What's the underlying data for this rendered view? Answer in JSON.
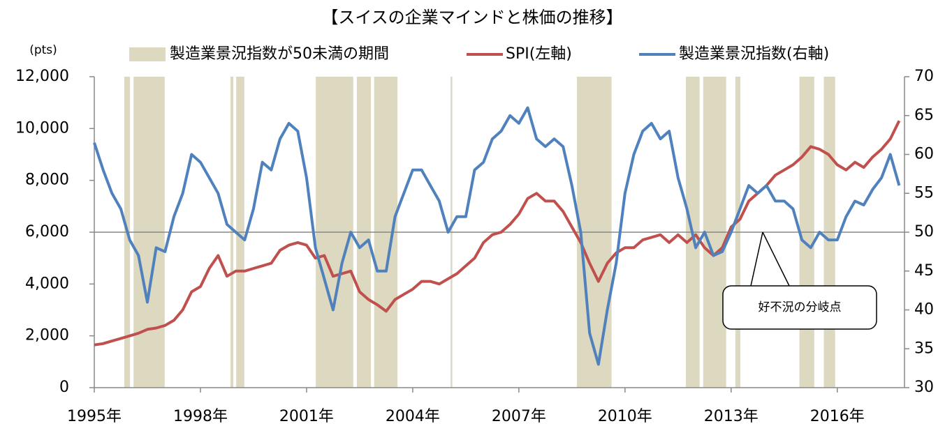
{
  "chart_data": {
    "type": "line",
    "title": "【スイスの企業マインドと株価の推移】",
    "y_unit": "(pts)",
    "annotation": "好不況の分岐点",
    "legend": "top",
    "xlim": [
      1995,
      2017.9
    ],
    "xticks": [
      {
        "value": 1995,
        "label": "1995年"
      },
      {
        "value": 1998,
        "label": "1998年"
      },
      {
        "value": 2001,
        "label": "2001年"
      },
      {
        "value": 2004,
        "label": "2004年"
      },
      {
        "value": 2007,
        "label": "2007年"
      },
      {
        "value": 2010,
        "label": "2010年"
      },
      {
        "value": 2013,
        "label": "2013年"
      },
      {
        "value": 2016,
        "label": "2016年"
      }
    ],
    "ylim": [
      0,
      12000
    ],
    "yticks": [
      0,
      {
        "value": 2000,
        "label": "2,000"
      },
      {
        "value": 4000,
        "label": "4,000"
      },
      {
        "value": 6000,
        "label": "6,000"
      },
      {
        "value": 8000,
        "label": "8,000"
      },
      {
        "value": 10000,
        "label": "10,000"
      },
      {
        "value": 12000,
        "label": "12,000"
      }
    ],
    "y2lim": [
      30,
      70
    ],
    "y2ticks": [
      30,
      35,
      40,
      45,
      50,
      55,
      60,
      65,
      70
    ],
    "reference_line": {
      "axis": "y2",
      "value": 50
    },
    "bands": {
      "name": "製造業景況指数が50未満の期間",
      "color": "#ddd8c0",
      "periods": [
        [
          1995.85,
          1996.01
        ],
        [
          1996.11,
          1996.99
        ],
        [
          1998.85,
          1998.93
        ],
        [
          1999.01,
          1999.24
        ],
        [
          2001.26,
          2002.32
        ],
        [
          2002.42,
          2002.82
        ],
        [
          2002.91,
          2003.57
        ],
        [
          2005.07,
          2005.12
        ],
        [
          2008.64,
          2009.62
        ],
        [
          2011.72,
          2012.11
        ],
        [
          2012.21,
          2012.86
        ],
        [
          2013.12,
          2013.26
        ],
        [
          2014.93,
          2015.35
        ],
        [
          2015.62,
          2015.94
        ]
      ]
    },
    "x": [
      1995,
      1995.25,
      1995.5,
      1995.75,
      1996,
      1996.25,
      1996.5,
      1996.75,
      1997,
      1997.25,
      1997.5,
      1997.75,
      1998,
      1998.25,
      1998.5,
      1998.75,
      1999,
      1999.25,
      1999.5,
      1999.75,
      2000,
      2000.25,
      2000.5,
      2000.75,
      2001,
      2001.25,
      2001.5,
      2001.75,
      2002,
      2002.25,
      2002.5,
      2002.75,
      2003,
      2003.25,
      2003.5,
      2003.75,
      2004,
      2004.25,
      2004.5,
      2004.75,
      2005,
      2005.25,
      2005.5,
      2005.75,
      2006,
      2006.25,
      2006.5,
      2006.75,
      2007,
      2007.25,
      2007.5,
      2007.75,
      2008,
      2008.25,
      2008.5,
      2008.75,
      2009,
      2009.25,
      2009.5,
      2009.75,
      2010,
      2010.25,
      2010.5,
      2010.75,
      2011,
      2011.25,
      2011.5,
      2011.75,
      2012,
      2012.25,
      2012.5,
      2012.75,
      2013,
      2013.25,
      2013.5,
      2013.75,
      2014,
      2014.25,
      2014.5,
      2014.75,
      2015,
      2015.25,
      2015.5,
      2015.75,
      2016,
      2016.25,
      2016.5,
      2016.75,
      2017,
      2017.25,
      2017.5,
      2017.75
    ],
    "series": [
      {
        "name": "SPI(左軸)",
        "color": "#c0504d",
        "axis": "y",
        "values": [
          1650,
          1700,
          1800,
          1900,
          2000,
          2100,
          2250,
          2300,
          2400,
          2600,
          3000,
          3700,
          3900,
          4600,
          5100,
          4300,
          4500,
          4500,
          4600,
          4700,
          4800,
          5300,
          5500,
          5600,
          5500,
          5000,
          5100,
          4300,
          4400,
          4500,
          3700,
          3400,
          3200,
          2950,
          3400,
          3600,
          3800,
          4100,
          4100,
          4000,
          4200,
          4400,
          4700,
          5000,
          5600,
          5900,
          6000,
          6300,
          6700,
          7300,
          7500,
          7200,
          7200,
          6800,
          6200,
          5600,
          4800,
          4100,
          4800,
          5200,
          5400,
          5400,
          5700,
          5800,
          5900,
          5600,
          5900,
          5600,
          5900,
          5400,
          5100,
          5400,
          6200,
          6500,
          7200,
          7500,
          7800,
          8200,
          8400,
          8600,
          8900,
          9300,
          9200,
          9000,
          8600,
          8400,
          8700,
          8500,
          8900,
          9200,
          9600,
          10300
        ]
      },
      {
        "name": "製造業景況指数(右軸)",
        "color": "#4f81bd",
        "axis": "y2",
        "values": [
          61.5,
          58,
          55,
          53,
          49,
          47,
          41,
          48,
          47.5,
          52,
          55,
          60,
          59,
          57,
          55,
          51,
          50,
          49,
          53,
          59,
          58,
          62,
          64,
          63,
          57,
          48,
          44,
          40,
          46,
          50,
          48,
          49,
          45,
          45,
          52,
          55,
          58,
          58,
          56,
          54,
          50,
          52,
          52,
          58,
          59,
          62,
          63,
          65,
          64,
          66,
          62,
          61,
          62,
          61,
          56,
          50,
          37,
          33,
          40,
          46,
          55,
          60,
          63,
          64,
          62,
          63,
          57,
          53,
          48,
          50,
          47,
          47.5,
          50,
          53,
          56,
          55,
          56,
          54,
          54,
          53,
          49,
          48,
          50,
          49,
          49,
          52,
          54,
          53.5,
          55.5,
          57,
          60,
          56
        ]
      }
    ]
  }
}
